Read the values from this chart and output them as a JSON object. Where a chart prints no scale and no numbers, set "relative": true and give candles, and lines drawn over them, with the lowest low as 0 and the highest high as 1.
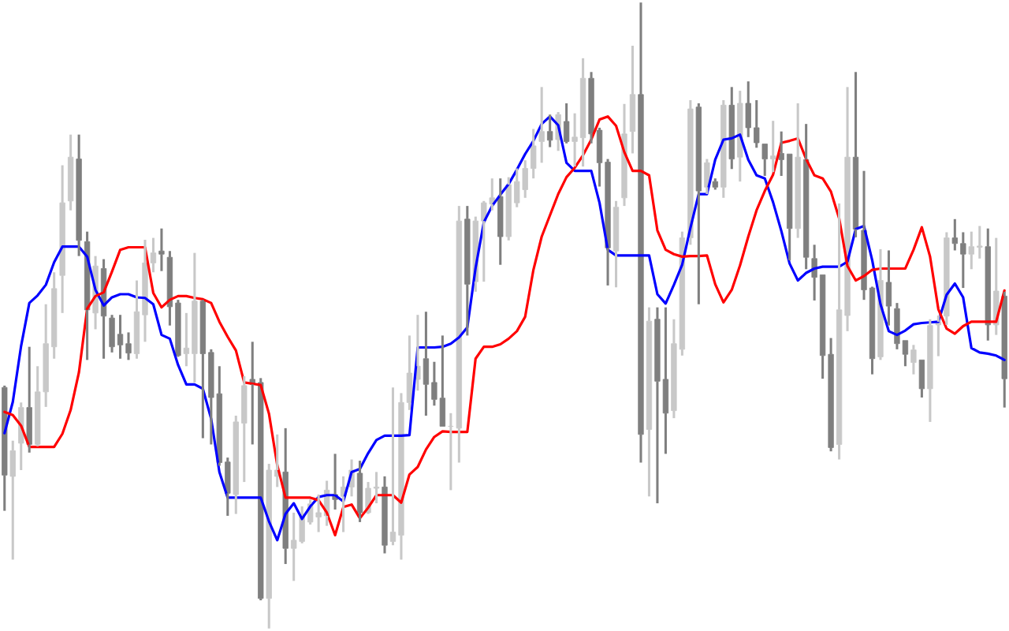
{
  "chart_data": {
    "type": "candlestick",
    "relative": true,
    "categories": [
      null,
      null,
      null,
      null,
      null,
      null,
      null,
      null,
      null,
      null,
      null,
      null,
      null,
      null,
      null,
      null,
      null,
      null,
      null,
      null,
      null,
      null,
      null,
      null,
      null,
      null,
      null,
      null,
      null,
      null,
      null,
      null,
      null,
      null,
      null,
      null,
      null,
      null,
      null,
      null,
      null,
      null,
      null,
      null,
      null,
      null,
      null,
      null,
      null,
      null,
      null,
      null,
      null,
      null,
      null,
      null,
      null,
      null,
      null,
      null,
      null,
      null,
      null,
      null,
      null,
      null,
      null,
      null,
      null,
      null,
      null,
      null,
      null,
      null,
      null,
      null,
      null,
      null,
      null,
      null,
      null,
      null,
      null,
      null,
      null,
      null,
      null,
      null,
      null,
      null,
      null,
      null,
      null,
      null,
      null,
      null,
      null,
      null,
      null,
      null,
      null,
      null,
      null,
      null,
      null,
      null,
      null,
      null,
      null,
      null,
      null,
      null,
      null,
      null,
      null,
      null,
      null,
      null,
      null,
      null,
      null,
      null
    ],
    "ohlc": [
      [
        0.385,
        0.388,
        0.188,
        0.245
      ],
      [
        0.243,
        0.3,
        0.11,
        0.284
      ],
      [
        0.296,
        0.361,
        0.253,
        0.353
      ],
      [
        0.353,
        0.45,
        0.281,
        0.294
      ],
      [
        0.294,
        0.419,
        0.291,
        0.378
      ],
      [
        0.378,
        0.518,
        0.354,
        0.455
      ],
      [
        0.45,
        0.569,
        0.431,
        0.543
      ],
      [
        0.564,
        0.74,
        0.504,
        0.68
      ],
      [
        0.683,
        0.789,
        0.668,
        0.753
      ],
      [
        0.75,
        0.789,
        0.595,
        0.62
      ],
      [
        0.618,
        0.634,
        0.429,
        0.509
      ],
      [
        0.504,
        0.595,
        0.478,
        0.579
      ],
      [
        0.575,
        0.59,
        0.431,
        0.499
      ],
      [
        0.496,
        0.501,
        0.441,
        0.45
      ],
      [
        0.47,
        0.501,
        0.431,
        0.453
      ],
      [
        0.455,
        0.473,
        0.429,
        0.44
      ],
      [
        0.439,
        0.556,
        0.431,
        0.506
      ],
      [
        0.501,
        0.621,
        0.458,
        0.584
      ],
      [
        0.584,
        0.624,
        0.569,
        0.6
      ],
      [
        0.603,
        0.639,
        0.571,
        0.598
      ],
      [
        0.593,
        0.603,
        0.484,
        0.514
      ],
      [
        0.52,
        0.525,
        0.434,
        0.436
      ],
      [
        0.439,
        0.504,
        0.419,
        0.448
      ],
      [
        0.439,
        0.6,
        0.393,
        0.523
      ],
      [
        0.523,
        0.525,
        0.304,
        0.439
      ],
      [
        0.441,
        0.446,
        0.294,
        0.369
      ],
      [
        0.375,
        0.419,
        0.26,
        0.265
      ],
      [
        0.266,
        0.273,
        0.18,
        0.216
      ],
      [
        0.214,
        0.34,
        0.183,
        0.33
      ],
      [
        0.328,
        0.403,
        0.234,
        0.388
      ],
      [
        0.398,
        0.458,
        0.294,
        0.39
      ],
      [
        0.393,
        0.4,
        0.045,
        0.048
      ],
      [
        0.048,
        0.263,
        0,
        0.253
      ],
      [
        0.243,
        0.31,
        0.226,
        0.253
      ],
      [
        0.25,
        0.32,
        0.103,
        0.128
      ],
      [
        0.128,
        0.185,
        0.076,
        0.141
      ],
      [
        0.139,
        0.195,
        0.136,
        0.183
      ],
      [
        0.17,
        0.206,
        0.166,
        0.199
      ],
      [
        0.178,
        0.214,
        0.154,
        0.185
      ],
      [
        0.18,
        0.236,
        0.164,
        0.221
      ],
      [
        0.214,
        0.279,
        0.19,
        0.206
      ],
      [
        0.211,
        0.243,
        0.154,
        0.226
      ],
      [
        0.226,
        0.27,
        0.211,
        0.253
      ],
      [
        0.248,
        0.268,
        0.17,
        0.185
      ],
      [
        0.185,
        0.234,
        0.183,
        0.224
      ],
      [
        0.224,
        0.25,
        0.2,
        0.226
      ],
      [
        0.226,
        0.243,
        0.12,
        0.133
      ],
      [
        0.139,
        0.385,
        0.133,
        0.154
      ],
      [
        0.149,
        0.376,
        0.11,
        0.361
      ],
      [
        0.361,
        0.468,
        0.349,
        0.408
      ],
      [
        0.398,
        0.501,
        0.38,
        0.419
      ],
      [
        0.431,
        0.506,
        0.34,
        0.39
      ],
      [
        0.393,
        0.426,
        0.356,
        0.366
      ],
      [
        0.368,
        0.468,
        0.323,
        0.323
      ],
      [
        0.323,
        0.344,
        0.221,
        0.323
      ],
      [
        0.32,
        0.675,
        0.265,
        0.651
      ],
      [
        0.654,
        0.675,
        0.468,
        0.55
      ],
      [
        0.554,
        0.658,
        0.538,
        0.651
      ],
      [
        0.651,
        0.683,
        0.554,
        0.68
      ],
      [
        0.678,
        0.719,
        0.668,
        0.688
      ],
      [
        0.69,
        0.719,
        0.581,
        0.626
      ],
      [
        0.626,
        0.721,
        0.62,
        0.709
      ],
      [
        0.68,
        0.735,
        0.673,
        0.714
      ],
      [
        0.701,
        0.748,
        0.688,
        0.735
      ],
      [
        0.735,
        0.798,
        0.719,
        0.771
      ],
      [
        0.778,
        0.865,
        0.744,
        0.794
      ],
      [
        0.794,
        0.821,
        0.769,
        0.78
      ],
      [
        0.781,
        0.825,
        0.763,
        0.821
      ],
      [
        0.81,
        0.839,
        0.775,
        0.778
      ],
      [
        0.778,
        0.823,
        0.738,
        0.785
      ],
      [
        0.784,
        0.911,
        0.738,
        0.879
      ],
      [
        0.879,
        0.889,
        0.775,
        0.79
      ],
      [
        0.796,
        0.8,
        0.706,
        0.744
      ],
      [
        0.745,
        0.75,
        0.548,
        0.608
      ],
      [
        0.603,
        0.683,
        0.545,
        0.673
      ],
      [
        0.688,
        0.838,
        0.675,
        0.79
      ],
      [
        0.794,
        0.931,
        0.759,
        0.853
      ],
      [
        0.853,
        1,
        0.265,
        0.31
      ],
      [
        0.318,
        0.513,
        0.211,
        0.491
      ],
      [
        0.494,
        0.513,
        0.2,
        0.395
      ],
      [
        0.398,
        0.513,
        0.279,
        0.344
      ],
      [
        0.348,
        0.494,
        0.336,
        0.455
      ],
      [
        0.446,
        0.634,
        0.436,
        0.624
      ],
      [
        0.624,
        0.844,
        0.613,
        0.83
      ],
      [
        0.833,
        0.839,
        0.518,
        0.699
      ],
      [
        0.705,
        0.75,
        0.694,
        0.744
      ],
      [
        0.714,
        0.719,
        0.701,
        0.705
      ],
      [
        0.705,
        0.844,
        0.688,
        0.836
      ],
      [
        0.836,
        0.865,
        0.734,
        0.75
      ],
      [
        0.753,
        0.859,
        0.714,
        0.839
      ],
      [
        0.839,
        0.874,
        0.785,
        0.8
      ],
      [
        0.8,
        0.844,
        0.768,
        0.776
      ],
      [
        0.774,
        0.774,
        0.723,
        0.75
      ],
      [
        0.75,
        0.811,
        0.729,
        0.755
      ],
      [
        0.759,
        0.794,
        0.723,
        0.749
      ],
      [
        0.758,
        0.758,
        0.588,
        0.639
      ],
      [
        0.639,
        0.839,
        0.624,
        0.753
      ],
      [
        0.749,
        0.806,
        0.574,
        0.593
      ],
      [
        0.591,
        0.613,
        0.524,
        0.561
      ],
      [
        0.565,
        0.565,
        0.399,
        0.436
      ],
      [
        0.438,
        0.464,
        0.283,
        0.289
      ],
      [
        0.294,
        0.679,
        0.27,
        0.509
      ],
      [
        0.5,
        0.865,
        0.475,
        0.753
      ],
      [
        0.753,
        0.889,
        0.625,
        0.638
      ],
      [
        0.636,
        0.731,
        0.525,
        0.541
      ],
      [
        0.544,
        0.546,
        0.406,
        0.431
      ],
      [
        0.434,
        0.606,
        0.429,
        0.556
      ],
      [
        0.553,
        0.604,
        0.484,
        0.515
      ],
      [
        0.511,
        0.52,
        0.446,
        0.455
      ],
      [
        0.46,
        0.46,
        0.419,
        0.438
      ],
      [
        0.425,
        0.453,
        0.406,
        0.445
      ],
      [
        0.429,
        0.429,
        0.369,
        0.383
      ],
      [
        0.383,
        0.494,
        0.33,
        0.484
      ],
      [
        0.485,
        0.5,
        0.435,
        0.49
      ],
      [
        0.499,
        0.633,
        0.485,
        0.624
      ],
      [
        0.624,
        0.654,
        0.604,
        0.615
      ],
      [
        0.615,
        0.633,
        0.544,
        0.598
      ],
      [
        0.598,
        0.634,
        0.574,
        0.61
      ],
      [
        0.609,
        0.643,
        0.591,
        0.611
      ],
      [
        0.61,
        0.639,
        0.46,
        0.485
      ],
      [
        0.485,
        0.624,
        0.469,
        0.539
      ],
      [
        0.531,
        0.538,
        0.353,
        0.399
      ]
    ],
    "colors": [
      "#7f7f7f",
      "#c8c8c8",
      "#c8c8c8",
      "#7f7f7f",
      "#c8c8c8",
      "#c8c8c8",
      "#c8c8c8",
      "#c8c8c8",
      "#c8c8c8",
      "#7f7f7f",
      "#7f7f7f",
      "#c8c8c8",
      "#7f7f7f",
      "#7f7f7f",
      "#7f7f7f",
      "#7f7f7f",
      "#c8c8c8",
      "#c8c8c8",
      "#c8c8c8",
      "#7f7f7f",
      "#7f7f7f",
      "#7f7f7f",
      "#c8c8c8",
      "#c8c8c8",
      "#7f7f7f",
      "#7f7f7f",
      "#7f7f7f",
      "#7f7f7f",
      "#c8c8c8",
      "#c8c8c8",
      "#7f7f7f",
      "#7f7f7f",
      "#c8c8c8",
      "#c8c8c8",
      "#7f7f7f",
      "#c8c8c8",
      "#c8c8c8",
      "#c8c8c8",
      "#c8c8c8",
      "#c8c8c8",
      "#7f7f7f",
      "#c8c8c8",
      "#c8c8c8",
      "#7f7f7f",
      "#c8c8c8",
      "#c8c8c8",
      "#7f7f7f",
      "#c8c8c8",
      "#c8c8c8",
      "#c8c8c8",
      "#c8c8c8",
      "#7f7f7f",
      "#7f7f7f",
      "#7f7f7f",
      "#c8c8c8",
      "#c8c8c8",
      "#7f7f7f",
      "#c8c8c8",
      "#c8c8c8",
      "#c8c8c8",
      "#7f7f7f",
      "#c8c8c8",
      "#c8c8c8",
      "#c8c8c8",
      "#c8c8c8",
      "#c8c8c8",
      "#7f7f7f",
      "#c8c8c8",
      "#7f7f7f",
      "#c8c8c8",
      "#c8c8c8",
      "#7f7f7f",
      "#7f7f7f",
      "#7f7f7f",
      "#c8c8c8",
      "#c8c8c8",
      "#c8c8c8",
      "#7f7f7f",
      "#c8c8c8",
      "#7f7f7f",
      "#7f7f7f",
      "#c8c8c8",
      "#c8c8c8",
      "#c8c8c8",
      "#7f7f7f",
      "#c8c8c8",
      "#7f7f7f",
      "#c8c8c8",
      "#7f7f7f",
      "#c8c8c8",
      "#7f7f7f",
      "#7f7f7f",
      "#7f7f7f",
      "#c8c8c8",
      "#7f7f7f",
      "#7f7f7f",
      "#c8c8c8",
      "#7f7f7f",
      "#7f7f7f",
      "#7f7f7f",
      "#7f7f7f",
      "#c8c8c8",
      "#c8c8c8",
      "#7f7f7f",
      "#7f7f7f",
      "#7f7f7f",
      "#c8c8c8",
      "#7f7f7f",
      "#7f7f7f",
      "#7f7f7f",
      "#c8c8c8",
      "#7f7f7f",
      "#c8c8c8",
      "#c8c8c8",
      "#c8c8c8",
      "#7f7f7f",
      "#7f7f7f",
      "#c8c8c8",
      "#c8c8c8",
      "#7f7f7f",
      "#c8c8c8",
      "#7f7f7f"
    ],
    "series": [
      {
        "type": "line",
        "color": "#0000ff",
        "values": [
          0.312,
          0.362,
          0.451,
          0.52,
          0.532,
          0.549,
          0.585,
          0.61,
          0.61,
          0.61,
          0.594,
          0.541,
          0.516,
          0.529,
          0.534,
          0.534,
          0.529,
          0.528,
          0.518,
          0.469,
          0.463,
          0.421,
          0.39,
          0.39,
          0.383,
          0.335,
          0.25,
          0.209,
          0.209,
          0.209,
          0.209,
          0.209,
          0.171,
          0.141,
          0.183,
          0.2,
          0.175,
          0.195,
          0.21,
          0.213,
          0.213,
          0.203,
          0.25,
          0.255,
          0.28,
          0.301,
          0.308,
          0.308,
          0.308,
          0.309,
          0.449,
          0.449,
          0.449,
          0.45,
          0.455,
          0.465,
          0.481,
          0.576,
          0.649,
          0.675,
          0.693,
          0.71,
          0.733,
          0.758,
          0.779,
          0.806,
          0.818,
          0.804,
          0.744,
          0.731,
          0.731,
          0.731,
          0.68,
          0.605,
          0.596,
          0.596,
          0.596,
          0.596,
          0.596,
          0.534,
          0.519,
          0.549,
          0.581,
          0.64,
          0.694,
          0.694,
          0.749,
          0.781,
          0.783,
          0.789,
          0.749,
          0.724,
          0.719,
          0.681,
          0.635,
          0.583,
          0.556,
          0.568,
          0.575,
          0.578,
          0.578,
          0.578,
          0.586,
          0.638,
          0.643,
          0.588,
          0.518,
          0.475,
          0.469,
          0.476,
          0.486,
          0.488,
          0.489,
          0.49,
          0.533,
          0.551,
          0.529,
          0.448,
          0.441,
          0.439,
          0.436,
          0.429
        ]
      },
      {
        "type": "line",
        "color": "#ff0000",
        "values": [
          0.346,
          0.341,
          0.324,
          0.29,
          0.29,
          0.29,
          0.29,
          0.311,
          0.349,
          0.409,
          0.511,
          0.531,
          0.537,
          0.57,
          0.605,
          0.609,
          0.609,
          0.609,
          0.536,
          0.513,
          0.525,
          0.531,
          0.531,
          0.528,
          0.526,
          0.52,
          0.49,
          0.466,
          0.444,
          0.393,
          0.391,
          0.389,
          0.343,
          0.261,
          0.209,
          0.209,
          0.209,
          0.209,
          0.205,
          0.185,
          0.149,
          0.194,
          0.198,
          0.176,
          0.193,
          0.213,
          0.213,
          0.213,
          0.201,
          0.246,
          0.258,
          0.286,
          0.306,
          0.315,
          0.314,
          0.314,
          0.314,
          0.431,
          0.45,
          0.45,
          0.454,
          0.463,
          0.475,
          0.498,
          0.573,
          0.626,
          0.66,
          0.694,
          0.721,
          0.736,
          0.756,
          0.781,
          0.813,
          0.818,
          0.803,
          0.761,
          0.731,
          0.731,
          0.724,
          0.636,
          0.605,
          0.598,
          0.594,
          0.595,
          0.595,
          0.596,
          0.55,
          0.521,
          0.541,
          0.58,
          0.626,
          0.668,
          0.699,
          0.725,
          0.776,
          0.779,
          0.783,
          0.75,
          0.724,
          0.719,
          0.698,
          0.655,
          0.579,
          0.556,
          0.563,
          0.573,
          0.575,
          0.575,
          0.575,
          0.575,
          0.605,
          0.641,
          0.594,
          0.51,
          0.479,
          0.471,
          0.483,
          0.49,
          0.49,
          0.49,
          0.49,
          0.54
        ]
      }
    ]
  }
}
